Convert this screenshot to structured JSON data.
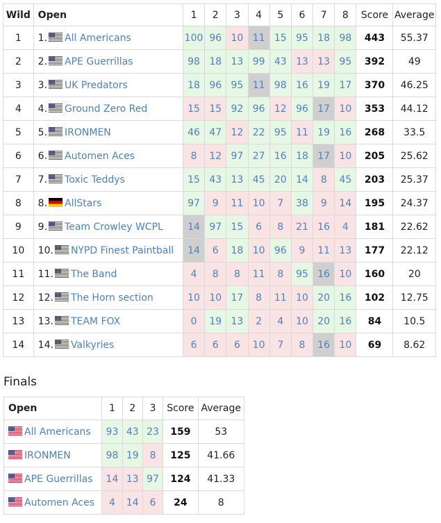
{
  "main": {
    "headers": [
      "Wild",
      "Open",
      "1",
      "2",
      "3",
      "4",
      "5",
      "6",
      "7",
      "8",
      "Score",
      "Average"
    ],
    "rows": [
      {
        "wild": "1",
        "seed": "1.",
        "flag": "us",
        "team": "All Americans",
        "rounds": [
          [
            "100",
            "g"
          ],
          [
            "96",
            "g"
          ],
          [
            "10",
            "r"
          ],
          [
            "11",
            "k"
          ],
          [
            "15",
            "g"
          ],
          [
            "95",
            "g"
          ],
          [
            "18",
            "g"
          ],
          [
            "98",
            "g"
          ]
        ],
        "score": "443",
        "average": "55.37"
      },
      {
        "wild": "2",
        "seed": "2.",
        "flag": "us",
        "team": "APE Guerrillas",
        "rounds": [
          [
            "98",
            "g"
          ],
          [
            "18",
            "g"
          ],
          [
            "13",
            "g"
          ],
          [
            "99",
            "g"
          ],
          [
            "43",
            "g"
          ],
          [
            "13",
            "r"
          ],
          [
            "13",
            "r"
          ],
          [
            "95",
            "g"
          ]
        ],
        "score": "392",
        "average": "49"
      },
      {
        "wild": "3",
        "seed": "3.",
        "flag": "us",
        "team": "UK Predators",
        "rounds": [
          [
            "18",
            "g"
          ],
          [
            "96",
            "g"
          ],
          [
            "95",
            "g"
          ],
          [
            "11",
            "k"
          ],
          [
            "98",
            "g"
          ],
          [
            "16",
            "g"
          ],
          [
            "19",
            "g"
          ],
          [
            "17",
            "g"
          ]
        ],
        "score": "370",
        "average": "46.25"
      },
      {
        "wild": "4",
        "seed": "4.",
        "flag": "us",
        "team": "Ground Zero Red",
        "rounds": [
          [
            "15",
            "r"
          ],
          [
            "15",
            "r"
          ],
          [
            "92",
            "g"
          ],
          [
            "96",
            "g"
          ],
          [
            "12",
            "r"
          ],
          [
            "96",
            "g"
          ],
          [
            "17",
            "k"
          ],
          [
            "10",
            "r"
          ]
        ],
        "score": "353",
        "average": "44.12"
      },
      {
        "wild": "5",
        "seed": "5.",
        "flag": "us",
        "team": "IRONMEN",
        "rounds": [
          [
            "46",
            "g"
          ],
          [
            "47",
            "g"
          ],
          [
            "12",
            "r"
          ],
          [
            "22",
            "g"
          ],
          [
            "95",
            "g"
          ],
          [
            "11",
            "r"
          ],
          [
            "19",
            "g"
          ],
          [
            "16",
            "g"
          ]
        ],
        "score": "268",
        "average": "33.5"
      },
      {
        "wild": "6",
        "seed": "6.",
        "flag": "us",
        "team": "Automen Aces",
        "rounds": [
          [
            "8",
            "r"
          ],
          [
            "12",
            "r"
          ],
          [
            "97",
            "g"
          ],
          [
            "27",
            "g"
          ],
          [
            "16",
            "g"
          ],
          [
            "18",
            "g"
          ],
          [
            "17",
            "k"
          ],
          [
            "10",
            "r"
          ]
        ],
        "score": "205",
        "average": "25.62"
      },
      {
        "wild": "7",
        "seed": "7.",
        "flag": "us",
        "team": "Toxic Teddys",
        "rounds": [
          [
            "15",
            "g"
          ],
          [
            "43",
            "g"
          ],
          [
            "13",
            "g"
          ],
          [
            "45",
            "g"
          ],
          [
            "20",
            "g"
          ],
          [
            "14",
            "g"
          ],
          [
            "8",
            "r"
          ],
          [
            "45",
            "g"
          ]
        ],
        "score": "203",
        "average": "25.37"
      },
      {
        "wild": "8",
        "seed": "8.",
        "flag": "de",
        "team": "AllStars",
        "rounds": [
          [
            "97",
            "g"
          ],
          [
            "9",
            "r"
          ],
          [
            "11",
            "r"
          ],
          [
            "10",
            "r"
          ],
          [
            "7",
            "r"
          ],
          [
            "38",
            "g"
          ],
          [
            "9",
            "r"
          ],
          [
            "14",
            "r"
          ]
        ],
        "score": "195",
        "average": "24.37"
      },
      {
        "wild": "9",
        "seed": "9.",
        "flag": "us",
        "team": "Team Crowley WCPL",
        "rounds": [
          [
            "14",
            "k"
          ],
          [
            "97",
            "g"
          ],
          [
            "15",
            "g"
          ],
          [
            "6",
            "r"
          ],
          [
            "8",
            "r"
          ],
          [
            "21",
            "r"
          ],
          [
            "16",
            "r"
          ],
          [
            "4",
            "r"
          ]
        ],
        "score": "181",
        "average": "22.62"
      },
      {
        "wild": "10",
        "seed": "10.",
        "flag": "us",
        "team": "NYPD Finest Paintball",
        "rounds": [
          [
            "14",
            "k"
          ],
          [
            "6",
            "r"
          ],
          [
            "18",
            "g"
          ],
          [
            "10",
            "r"
          ],
          [
            "96",
            "g"
          ],
          [
            "9",
            "r"
          ],
          [
            "11",
            "r"
          ],
          [
            "13",
            "r"
          ]
        ],
        "score": "177",
        "average": "22.12"
      },
      {
        "wild": "11",
        "seed": "11.",
        "flag": "us",
        "team": "The Band",
        "rounds": [
          [
            "4",
            "r"
          ],
          [
            "8",
            "r"
          ],
          [
            "8",
            "r"
          ],
          [
            "11",
            "r"
          ],
          [
            "8",
            "r"
          ],
          [
            "95",
            "g"
          ],
          [
            "16",
            "k"
          ],
          [
            "10",
            "r"
          ]
        ],
        "score": "160",
        "average": "20"
      },
      {
        "wild": "12",
        "seed": "12.",
        "flag": "us",
        "team": "The Horn section",
        "rounds": [
          [
            "10",
            "r"
          ],
          [
            "10",
            "r"
          ],
          [
            "17",
            "g"
          ],
          [
            "8",
            "r"
          ],
          [
            "11",
            "r"
          ],
          [
            "10",
            "r"
          ],
          [
            "20",
            "g"
          ],
          [
            "16",
            "g"
          ]
        ],
        "score": "102",
        "average": "12.75"
      },
      {
        "wild": "13",
        "seed": "13.",
        "flag": "us",
        "team": "TEAM FOX",
        "rounds": [
          [
            "0",
            "r"
          ],
          [
            "19",
            "g"
          ],
          [
            "13",
            "g"
          ],
          [
            "2",
            "r"
          ],
          [
            "4",
            "r"
          ],
          [
            "10",
            "r"
          ],
          [
            "20",
            "g"
          ],
          [
            "16",
            "g"
          ]
        ],
        "score": "84",
        "average": "10.5"
      },
      {
        "wild": "14",
        "seed": "14.",
        "flag": "us",
        "team": "Valkyries",
        "rounds": [
          [
            "6",
            "r"
          ],
          [
            "6",
            "r"
          ],
          [
            "6",
            "r"
          ],
          [
            "10",
            "r"
          ],
          [
            "7",
            "r"
          ],
          [
            "8",
            "r"
          ],
          [
            "16",
            "k"
          ],
          [
            "10",
            "r"
          ]
        ],
        "score": "69",
        "average": "8.62"
      }
    ]
  },
  "finals": {
    "title": "Finals",
    "headers": [
      "Open",
      "1",
      "2",
      "3",
      "Score",
      "Average"
    ],
    "rows": [
      {
        "flag": "us",
        "team": "All Americans",
        "rounds": [
          [
            "93",
            "g"
          ],
          [
            "43",
            "g"
          ],
          [
            "23",
            "g"
          ]
        ],
        "score": "159",
        "average": "53"
      },
      {
        "flag": "us",
        "team": "IRONMEN",
        "rounds": [
          [
            "98",
            "g"
          ],
          [
            "19",
            "g"
          ],
          [
            "8",
            "r"
          ]
        ],
        "score": "125",
        "average": "41.66"
      },
      {
        "flag": "us",
        "team": "APE Guerrillas",
        "rounds": [
          [
            "14",
            "r"
          ],
          [
            "13",
            "r"
          ],
          [
            "97",
            "g"
          ]
        ],
        "score": "124",
        "average": "41.33"
      },
      {
        "flag": "us",
        "team": "Automen Aces",
        "rounds": [
          [
            "4",
            "r"
          ],
          [
            "14",
            "r"
          ],
          [
            "6",
            "r"
          ]
        ],
        "score": "24",
        "average": "8"
      }
    ]
  },
  "colors": {
    "win": "#e6f7e4",
    "loss": "#fae3e3",
    "bye": "#cfcfcf",
    "link": "#4f81bd"
  },
  "flag_icons": {
    "us": "us-flag-icon",
    "de": "germany-flag-icon"
  }
}
